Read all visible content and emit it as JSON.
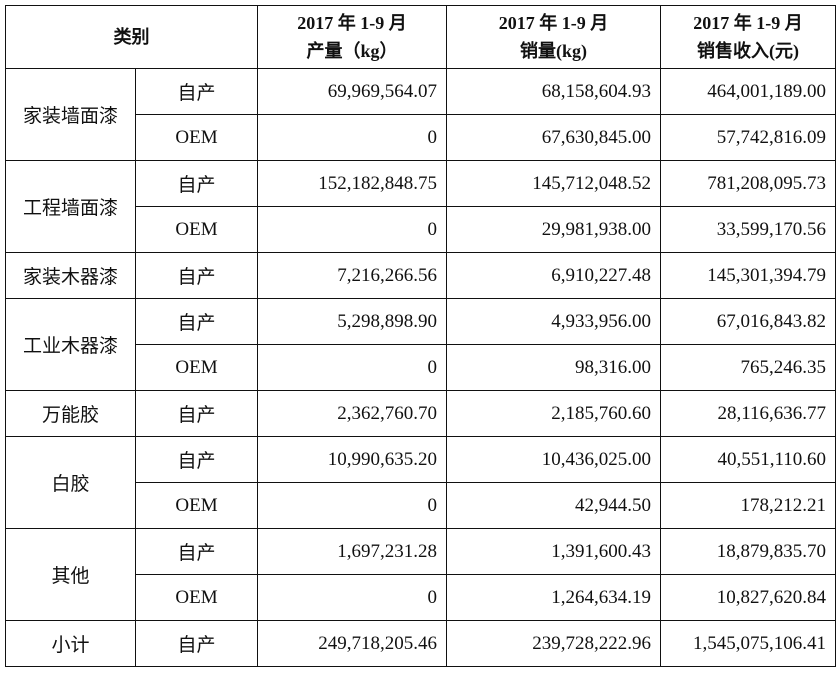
{
  "header": {
    "category": "类别",
    "columns": [
      {
        "line1": "2017 年 1-9 月",
        "line2": "产量（kg）"
      },
      {
        "line1": "2017 年 1-9 月",
        "line2": "销量(kg)"
      },
      {
        "line1": "2017 年 1-9 月",
        "line2": "销售收入(元)"
      }
    ]
  },
  "groups": [
    {
      "name": "家装墙面漆",
      "rows": [
        {
          "type": "自产",
          "production": "69,969,564.07",
          "sales": "68,158,604.93",
          "revenue": "464,001,189.00"
        },
        {
          "type": "OEM",
          "production": "0",
          "sales": "67,630,845.00",
          "revenue": "57,742,816.09"
        }
      ]
    },
    {
      "name": "工程墙面漆",
      "rows": [
        {
          "type": "自产",
          "production": "152,182,848.75",
          "sales": "145,712,048.52",
          "revenue": "781,208,095.73"
        },
        {
          "type": "OEM",
          "production": "0",
          "sales": "29,981,938.00",
          "revenue": "33,599,170.56"
        }
      ]
    },
    {
      "name": "家装木器漆",
      "rows": [
        {
          "type": "自产",
          "production": "7,216,266.56",
          "sales": "6,910,227.48",
          "revenue": "145,301,394.79"
        }
      ]
    },
    {
      "name": "工业木器漆",
      "rows": [
        {
          "type": "自产",
          "production": "5,298,898.90",
          "sales": "4,933,956.00",
          "revenue": "67,016,843.82"
        },
        {
          "type": "OEM",
          "production": "0",
          "sales": "98,316.00",
          "revenue": "765,246.35"
        }
      ]
    },
    {
      "name": "万能胶",
      "rows": [
        {
          "type": "自产",
          "production": "2,362,760.70",
          "sales": "2,185,760.60",
          "revenue": "28,116,636.77"
        }
      ]
    },
    {
      "name": "白胶",
      "rows": [
        {
          "type": "自产",
          "production": "10,990,635.20",
          "sales": "10,436,025.00",
          "revenue": "40,551,110.60"
        },
        {
          "type": "OEM",
          "production": "0",
          "sales": "42,944.50",
          "revenue": "178,212.21"
        }
      ]
    },
    {
      "name": "其他",
      "rows": [
        {
          "type": "自产",
          "production": "1,697,231.28",
          "sales": "1,391,600.43",
          "revenue": "18,879,835.70"
        },
        {
          "type": "OEM",
          "production": "0",
          "sales": "1,264,634.19",
          "revenue": "10,827,620.84"
        }
      ]
    },
    {
      "name": "小计",
      "rows": [
        {
          "type": "自产",
          "production": "249,718,205.46",
          "sales": "239,728,222.96",
          "revenue": "1,545,075,106.41"
        }
      ]
    }
  ]
}
